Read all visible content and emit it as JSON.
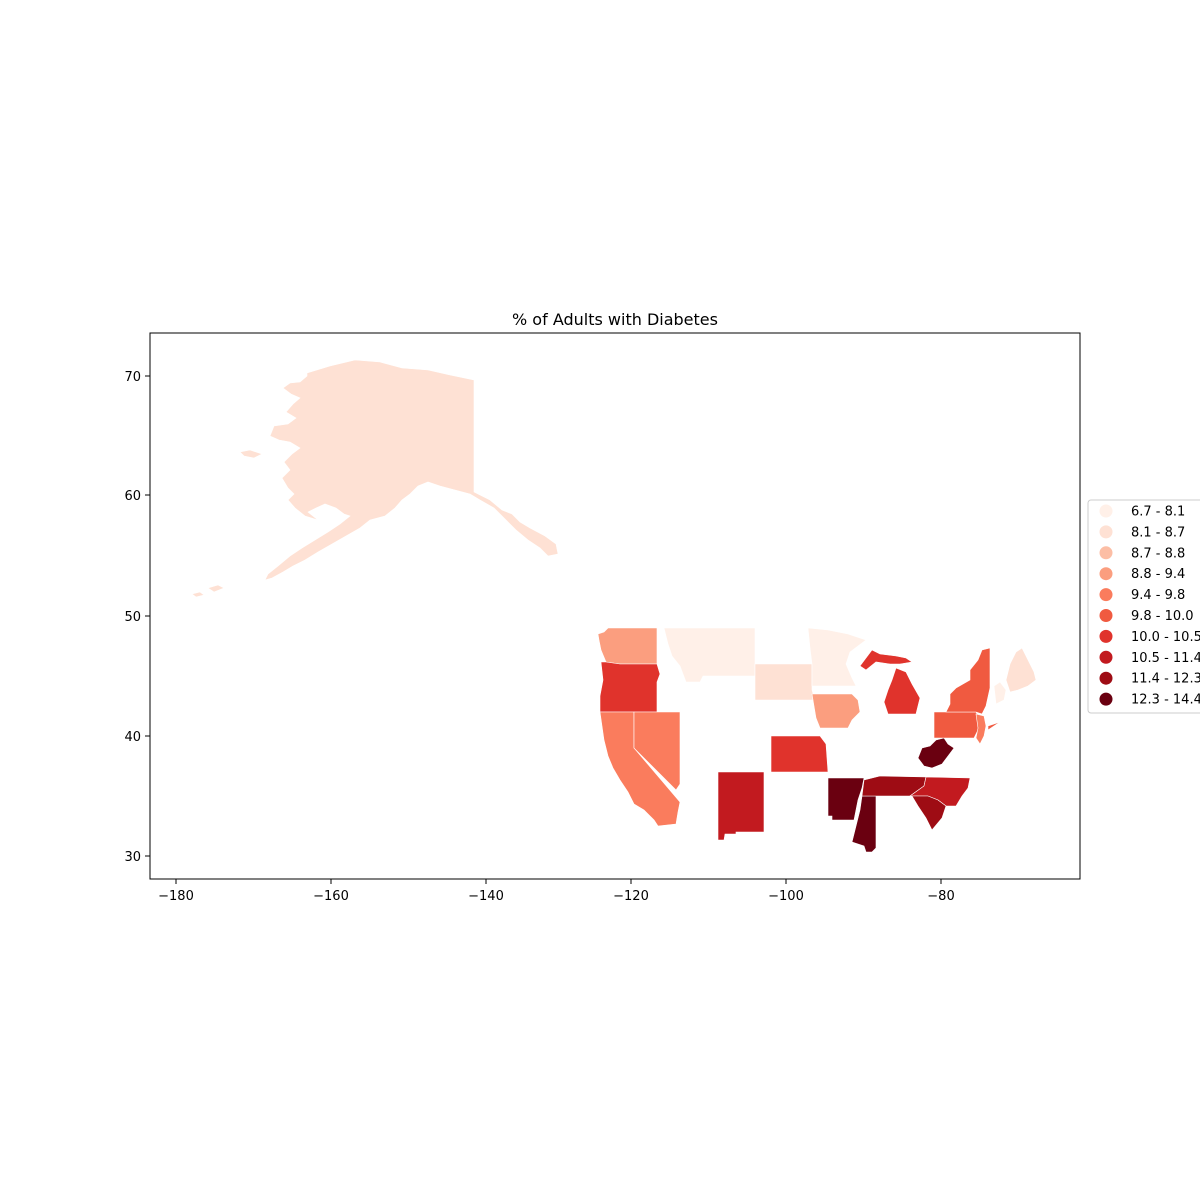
{
  "title": "% of Adults with Diabetes",
  "axes": {
    "x_ticks": [
      "−180",
      "−160",
      "−140",
      "−120",
      "−100",
      "−80"
    ],
    "y_ticks": [
      "30",
      "40",
      "50",
      "60",
      "70"
    ]
  },
  "legend": {
    "placement": "right",
    "entries": [
      {
        "label": "6.7 - 8.1",
        "color": "#fff0e8"
      },
      {
        "label": "8.1 - 8.7",
        "color": "#fee1d4"
      },
      {
        "label": "8.7 - 8.8",
        "color": "#fcbea5"
      },
      {
        "label": "8.8 - 9.4",
        "color": "#fb9e7f"
      },
      {
        "label": "9.4 - 9.8",
        "color": "#fa7c5d"
      },
      {
        "label": "9.8 - 10.0",
        "color": "#f05a40"
      },
      {
        "label": "10.0 - 10.5",
        "color": "#e0332c"
      },
      {
        "label": "10.5 - 11.4",
        "color": "#c21a1f"
      },
      {
        "label": "11.4 - 12.3",
        "color": "#9e0c14"
      },
      {
        "label": "12.3 - 14.4",
        "color": "#6a0010"
      }
    ]
  },
  "chart_data": {
    "type": "choropleth",
    "title": "% of Adults with Diabetes",
    "xlim": [
      -183.5,
      -63.5
    ],
    "ylim": [
      28.2,
      73.4
    ],
    "colormap": "Reds",
    "bins": [
      "6.7 - 8.1",
      "8.1 - 8.7",
      "8.7 - 8.8",
      "8.8 - 9.4",
      "9.4 - 9.8",
      "9.8 - 10.0",
      "10.0 - 10.5",
      "10.5 - 11.4",
      "11.4 - 12.3",
      "12.3 - 14.4"
    ],
    "regions": [
      {
        "name": "Alaska",
        "bin": "8.1 - 8.7"
      },
      {
        "name": "Washington",
        "bin": "8.8 - 9.4"
      },
      {
        "name": "Oregon",
        "bin": "10.0 - 10.5"
      },
      {
        "name": "California",
        "bin": "9.4 - 9.8"
      },
      {
        "name": "Nevada",
        "bin": "9.4 - 9.8"
      },
      {
        "name": "Montana",
        "bin": "6.7 - 8.1"
      },
      {
        "name": "South Dakota",
        "bin": "8.1 - 8.7"
      },
      {
        "name": "Minnesota",
        "bin": "6.7 - 8.1"
      },
      {
        "name": "Iowa",
        "bin": "8.8 - 9.4"
      },
      {
        "name": "Kansas",
        "bin": "10.0 - 10.5"
      },
      {
        "name": "New Mexico",
        "bin": "10.5 - 11.4"
      },
      {
        "name": "Arkansas",
        "bin": "12.3 - 14.4"
      },
      {
        "name": "Mississippi",
        "bin": "12.3 - 14.4"
      },
      {
        "name": "Tennessee",
        "bin": "11.4 - 12.3"
      },
      {
        "name": "North Carolina",
        "bin": "10.5 - 11.4"
      },
      {
        "name": "South Carolina",
        "bin": "11.4 - 12.3"
      },
      {
        "name": "West Virginia",
        "bin": "12.3 - 14.4"
      },
      {
        "name": "Michigan",
        "bin": "10.0 - 10.5"
      },
      {
        "name": "Pennsylvania",
        "bin": "9.8 - 10.0"
      },
      {
        "name": "New York",
        "bin": "9.8 - 10.0"
      },
      {
        "name": "New Jersey",
        "bin": "9.4 - 9.8"
      },
      {
        "name": "Vermont",
        "bin": "6.7 - 8.1"
      },
      {
        "name": "Maine",
        "bin": "8.1 - 8.7"
      }
    ]
  }
}
